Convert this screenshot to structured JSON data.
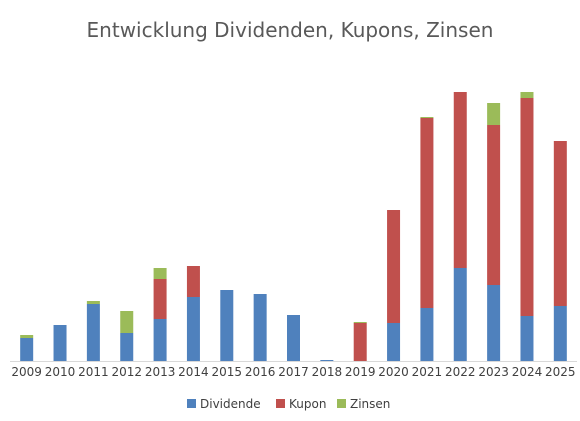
{
  "chart_data": {
    "type": "bar",
    "stacked": true,
    "title": "Entwicklung Dividenden, Kupons, Zinsen",
    "xlabel": "",
    "ylabel": "",
    "grid": false,
    "legend_position": "bottom",
    "categories": [
      "2009",
      "2010",
      "2011",
      "2012",
      "2013",
      "2014",
      "2015",
      "2016",
      "2017",
      "2018",
      "2019",
      "2020",
      "2021",
      "2022",
      "2023",
      "2024",
      "2025"
    ],
    "ylim": [
      0,
      270
    ],
    "series": [
      {
        "name": "Dividende",
        "color": "#4f81bd",
        "values": [
          23,
          36,
          57,
          28,
          42,
          64,
          71,
          67,
          46,
          1,
          0,
          38,
          53,
          93,
          76,
          45,
          55
        ]
      },
      {
        "name": "Kupon",
        "color": "#c0504d",
        "values": [
          0,
          0,
          0,
          0,
          40,
          31,
          0,
          0,
          0,
          0,
          38,
          113,
          190,
          176,
          160,
          218,
          165
        ]
      },
      {
        "name": "Zinsen",
        "color": "#9bbb59",
        "values": [
          3,
          0,
          3,
          22,
          11,
          0,
          0,
          0,
          0,
          0,
          1,
          0,
          1,
          0,
          22,
          6,
          0
        ]
      }
    ]
  }
}
